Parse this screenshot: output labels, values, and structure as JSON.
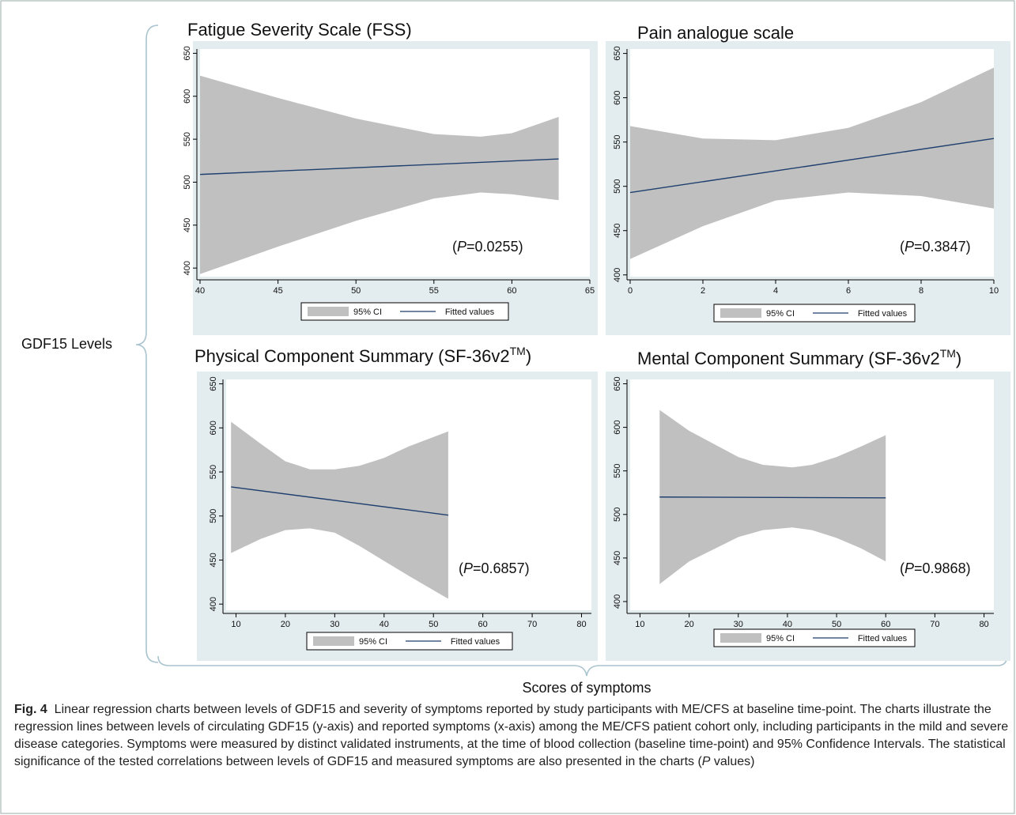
{
  "figure": {
    "y_group_label": "GDF15 Levels",
    "x_group_label": "Scores of symptoms",
    "caption": {
      "label": "Fig. 4",
      "text_1": "Linear regression charts between levels of GDF15 and severity of symptoms reported by study participants with ME/CFS at baseline time-point. The charts illustrate the regression lines between levels of circulating GDF15 (y-axis) and reported symptoms (x-axis) among the ME/CFS patient cohort only, including participants in the mild and severe disease categories. Symptoms were measured by distinct validated instruments, at the time of blood collection (baseline time-point) and 95% Confidence Intervals. The statistical significance of the tested correlations between levels of GDF15 and measured symptoms are also presented in the charts (",
      "p_italic": "P",
      "text_2": " values)"
    }
  },
  "colors": {
    "panel_bg": "#e3ecee",
    "ci_fill": "#c0c0c0",
    "fit_line": "#1f3f6e",
    "axis": "#000000",
    "bracket": "#aac4cf"
  },
  "legend_labels": {
    "ci": "95% CI",
    "fit": "Fitted values"
  },
  "chart_data": [
    {
      "type": "line",
      "title": "Fatigue Severity Scale (FSS)",
      "title_sup": "",
      "x_ticks": [
        40,
        45,
        50,
        55,
        60,
        65
      ],
      "y_ticks": [
        400,
        450,
        500,
        550,
        600,
        650
      ],
      "xlim": [
        40,
        65
      ],
      "ylim": [
        390,
        655
      ],
      "fitted": {
        "x": [
          40,
          63
        ],
        "y": [
          509,
          527
        ]
      },
      "ci_upper": {
        "x": [
          40,
          45,
          50,
          55,
          58,
          60,
          63
        ],
        "y": [
          624,
          598,
          574,
          556,
          553,
          557,
          576
        ]
      },
      "ci_lower": {
        "x": [
          40,
          45,
          50,
          55,
          58,
          60,
          63
        ],
        "y": [
          393,
          425,
          455,
          481,
          488,
          486,
          479
        ]
      },
      "p_prefix": "(",
      "p_symbol": "P",
      "p_value": "=0.0255)"
    },
    {
      "type": "line",
      "title": "Pain analogue scale",
      "title_sup": "",
      "x_ticks": [
        0,
        2,
        4,
        6,
        8,
        10
      ],
      "y_ticks": [
        400,
        450,
        500,
        550,
        600,
        650
      ],
      "xlim": [
        0,
        10
      ],
      "ylim": [
        398,
        655
      ],
      "fitted": {
        "x": [
          0,
          10
        ],
        "y": [
          493,
          554
        ]
      },
      "ci_upper": {
        "x": [
          0,
          2,
          4,
          6,
          8,
          10
        ],
        "y": [
          568,
          554,
          552,
          566,
          595,
          634
        ]
      },
      "ci_lower": {
        "x": [
          0,
          2,
          4,
          6,
          8,
          10
        ],
        "y": [
          418,
          455,
          484,
          493,
          489,
          475
        ]
      },
      "p_prefix": "(",
      "p_symbol": "P",
      "p_value": "=0.3847)"
    },
    {
      "type": "line",
      "title": "Physical Component Summary (SF-36v2",
      "title_sup": "TM",
      "title_end": ")",
      "x_ticks": [
        10,
        20,
        30,
        40,
        50,
        60,
        70,
        80
      ],
      "y_ticks": [
        400,
        450,
        500,
        550,
        600,
        650
      ],
      "xlim": [
        8,
        82
      ],
      "ylim": [
        393,
        655
      ],
      "fitted": {
        "x": [
          9,
          53
        ],
        "y": [
          533,
          501
        ]
      },
      "ci_upper": {
        "x": [
          9,
          15,
          20,
          25,
          30,
          35,
          40,
          45,
          53
        ],
        "y": [
          607,
          582,
          562,
          553,
          553,
          557,
          566,
          579,
          596
        ]
      },
      "ci_lower": {
        "x": [
          9,
          15,
          20,
          25,
          30,
          35,
          40,
          45,
          53
        ],
        "y": [
          458,
          474,
          484,
          486,
          481,
          466,
          449,
          432,
          406
        ]
      },
      "p_prefix": "(",
      "p_symbol": "P",
      "p_value": "=0.6857)"
    },
    {
      "type": "line",
      "title": "Mental Component Summary (SF-36v2",
      "title_sup": "TM",
      "title_end": ")",
      "x_ticks": [
        10,
        20,
        30,
        40,
        50,
        60,
        70,
        80
      ],
      "y_ticks": [
        400,
        450,
        500,
        550,
        600,
        650
      ],
      "xlim": [
        8,
        82
      ],
      "ylim": [
        390,
        655
      ],
      "fitted": {
        "x": [
          14,
          60
        ],
        "y": [
          520,
          519
        ]
      },
      "ci_upper": {
        "x": [
          14,
          20,
          30,
          35,
          41,
          45,
          50,
          55,
          60
        ],
        "y": [
          620,
          596,
          566,
          557,
          554,
          557,
          566,
          578,
          591
        ]
      },
      "ci_lower": {
        "x": [
          14,
          20,
          30,
          35,
          41,
          45,
          50,
          55,
          60
        ],
        "y": [
          420,
          446,
          474,
          482,
          485,
          482,
          473,
          461,
          446
        ]
      },
      "p_prefix": "(",
      "p_symbol": "P",
      "p_value": "=0.9868)"
    }
  ]
}
